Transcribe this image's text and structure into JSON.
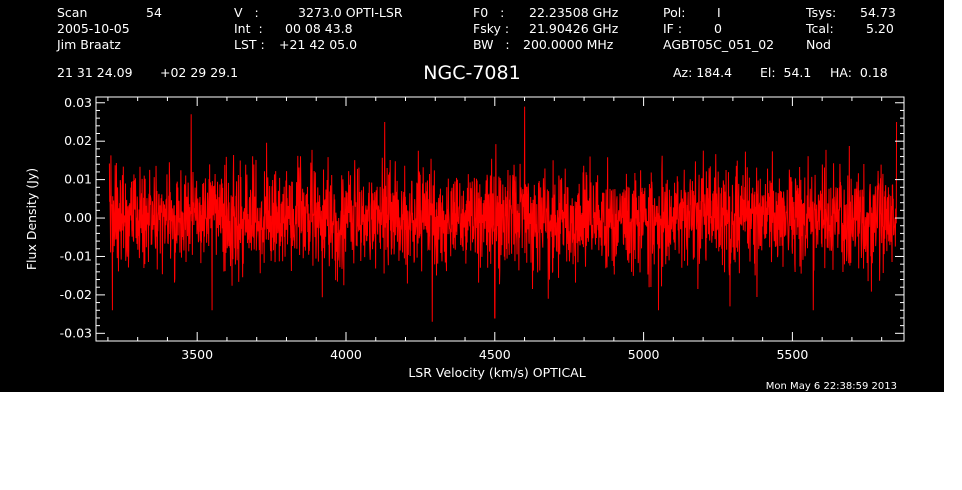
{
  "header": {
    "scan_label": "Scan",
    "scan_value": "54",
    "date": "2005-10-05",
    "observer": "Jim Braatz",
    "v_label": "V   :",
    "v_value": "3273.0 OPTI-LSR",
    "int_label": "Int  :",
    "int_value": "00 08 43.8",
    "lst_label": "LST : ",
    "lst_value": "+21 42 05.0",
    "f0_label": "F0   :",
    "f0_value": "22.23508 GHz",
    "fsky_label": "Fsky :",
    "fsky_value": "21.90426 GHz",
    "bw_label": "BW   :",
    "bw_value": "200.0000 MHz",
    "pol_label": "Pol:",
    "pol_value": "I",
    "if_label": "IF :",
    "if_value": "0",
    "proc_value": "AGBT05C_051_02",
    "tsys_label": "Tsys:",
    "tsys_value": "54.73",
    "tcal_label": "Tcal:",
    "tcal_value": "5.20",
    "proc_type": "Nod",
    "ra": "21 31 24.09",
    "dec": "+02 29 29.1",
    "source": "NGC-7081",
    "az": "Az: 184.4",
    "el": "El:  54.1",
    "ha": "HA:  0.18",
    "timestamp": "Mon May  6 22:38:59 2013"
  },
  "chart_data": {
    "type": "line",
    "title": "NGC-7081",
    "xlabel": "LSR Velocity (km/s) OPTICAL",
    "ylabel": "Flux Density (Jy)",
    "xlim": [
      3160,
      5875
    ],
    "ylim": [
      -0.032,
      0.0315
    ],
    "x_ticks": [
      3500,
      4000,
      4500,
      5000,
      5500
    ],
    "x_tick_labels": [
      "3500",
      "4000",
      "4500",
      "5000",
      "5500"
    ],
    "y_ticks": [
      -0.03,
      -0.02,
      -0.01,
      0.0,
      0.01,
      0.02,
      0.03
    ],
    "y_tick_labels": [
      "-0.03",
      "-0.02",
      "-0.01",
      "0.00",
      "0.01",
      "0.02",
      "0.03"
    ],
    "series": [
      {
        "color": "#ff0000",
        "x_start": 3205,
        "x_end": 5850,
        "noise_rms": 0.0065,
        "n_points": 2600,
        "spikes": [
          {
            "x": 3215,
            "y": -0.024
          },
          {
            "x": 3480,
            "y": 0.027
          },
          {
            "x": 3550,
            "y": -0.024
          },
          {
            "x": 4130,
            "y": 0.025
          },
          {
            "x": 4290,
            "y": -0.027
          },
          {
            "x": 4500,
            "y": -0.026
          },
          {
            "x": 4600,
            "y": 0.029
          },
          {
            "x": 4680,
            "y": -0.021
          },
          {
            "x": 5050,
            "y": -0.024
          },
          {
            "x": 5290,
            "y": -0.023
          },
          {
            "x": 5570,
            "y": -0.024
          },
          {
            "x": 5850,
            "y": 0.025
          }
        ]
      }
    ]
  }
}
